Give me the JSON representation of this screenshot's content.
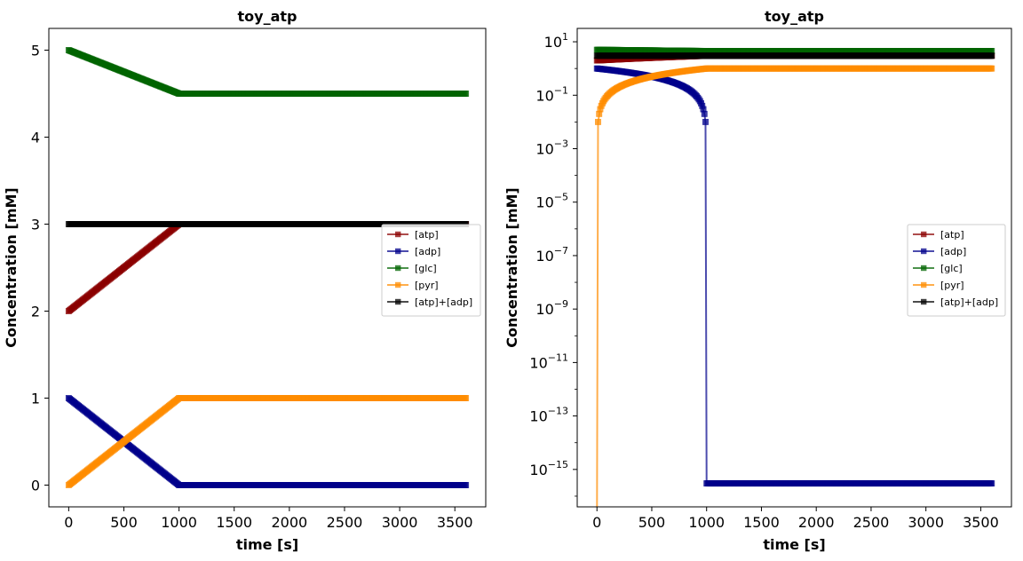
{
  "chart_data": [
    {
      "type": "line",
      "title": "toy_atp",
      "xlabel": "time [s]",
      "ylabel": "Concentration [mM]",
      "yscale": "linear",
      "xlim": [
        -180,
        3780
      ],
      "ylim": [
        -0.25,
        5.25
      ],
      "xticks": [
        0,
        500,
        1000,
        1500,
        2000,
        2500,
        3000,
        3500
      ],
      "yticks": [
        0,
        1,
        2,
        3,
        4,
        5
      ],
      "grid": false,
      "legend_position": "right",
      "series": [
        {
          "name": "[atp]",
          "color": "#8b0000",
          "x": [
            0,
            1000,
            3600
          ],
          "y": [
            2,
            3,
            3
          ]
        },
        {
          "name": "[adp]",
          "color": "#00008b",
          "x": [
            0,
            1000,
            3600
          ],
          "y": [
            1,
            0,
            0
          ]
        },
        {
          "name": "[glc]",
          "color": "#006400",
          "x": [
            0,
            1000,
            3600
          ],
          "y": [
            5,
            4.5,
            4.5
          ]
        },
        {
          "name": "[pyr]",
          "color": "#ff8c00",
          "x": [
            0,
            1000,
            3600
          ],
          "y": [
            0,
            1,
            1
          ]
        },
        {
          "name": "[atp]+[adp]",
          "color": "#000000",
          "x": [
            0,
            3600
          ],
          "y": [
            3,
            3
          ]
        }
      ]
    },
    {
      "type": "line",
      "title": "toy_atp",
      "xlabel": "time [s]",
      "ylabel": "Concentration [mM]",
      "yscale": "log",
      "xlim": [
        -180,
        3780
      ],
      "ylim_log10": [
        -16.4,
        1.5
      ],
      "xticks": [
        0,
        500,
        1000,
        1500,
        2000,
        2500,
        3000,
        3500
      ],
      "yticks_log10": [
        1,
        -1,
        -3,
        -5,
        -7,
        -9,
        -11,
        -13,
        -15
      ],
      "grid": false,
      "legend_position": "right",
      "series": [
        {
          "name": "[atp]",
          "color": "#8b0000",
          "x": [
            0,
            1000,
            3600
          ],
          "y": [
            2,
            3,
            3
          ]
        },
        {
          "name": "[adp]",
          "color": "#00008b",
          "x": [
            0,
            100,
            200,
            300,
            400,
            500,
            600,
            700,
            800,
            850,
            900,
            950,
            980,
            990,
            1000,
            3600
          ],
          "y": [
            1,
            0.9,
            0.8,
            0.7,
            0.6,
            0.5,
            0.4,
            0.3,
            0.2,
            0.15,
            0.1,
            0.05,
            0.02,
            0.01,
            3e-16,
            3e-16
          ]
        },
        {
          "name": "[glc]",
          "color": "#006400",
          "x": [
            0,
            1000,
            3600
          ],
          "y": [
            5,
            4.5,
            4.5
          ]
        },
        {
          "name": "[pyr]",
          "color": "#ff8c00",
          "x": [
            0,
            10,
            30,
            60,
            100,
            150,
            200,
            300,
            400,
            500,
            600,
            700,
            800,
            900,
            1000,
            3600
          ],
          "y": [
            1e-17,
            0.01,
            0.03,
            0.06,
            0.1,
            0.15,
            0.2,
            0.3,
            0.4,
            0.5,
            0.6,
            0.7,
            0.8,
            0.9,
            1,
            1
          ]
        },
        {
          "name": "[atp]+[adp]",
          "color": "#000000",
          "x": [
            0,
            3600
          ],
          "y": [
            3,
            3
          ]
        }
      ]
    }
  ]
}
